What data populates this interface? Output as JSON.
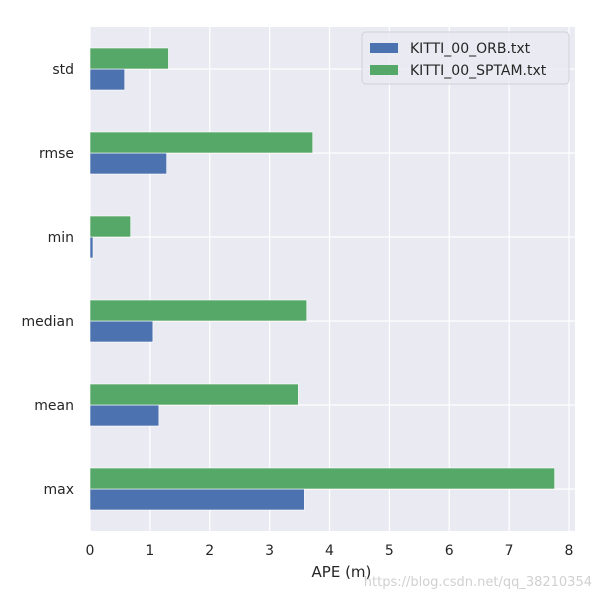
{
  "chart_data": {
    "type": "bar",
    "orientation": "horizontal",
    "categories": [
      "max",
      "mean",
      "median",
      "min",
      "rmse",
      "std"
    ],
    "series": [
      {
        "name": "KITTI_00_ORB.txt",
        "color": "#4c72b0",
        "values": [
          3.58,
          1.15,
          1.05,
          0.05,
          1.28,
          0.58
        ]
      },
      {
        "name": "KITTI_00_SPTAM.txt",
        "color": "#55a868",
        "values": [
          7.76,
          3.48,
          3.62,
          0.68,
          3.72,
          1.31
        ]
      }
    ],
    "xlabel": "APE (m)",
    "ylabel": "",
    "xlim": [
      0,
      8.1
    ],
    "xticks": [
      0,
      1,
      2,
      3,
      4,
      5,
      6,
      7,
      8
    ],
    "grid": true,
    "background_color": "#eaeaf2",
    "grid_color": "#ffffff",
    "legend_position": "top-right"
  },
  "watermark": "https://blog.csdn.net/qq_38210354"
}
